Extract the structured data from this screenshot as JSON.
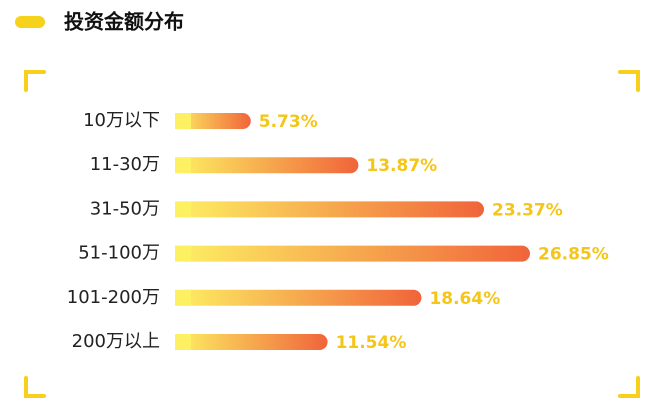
{
  "chart_data": {
    "type": "bar",
    "orientation": "horizontal",
    "title": "投资金额分布",
    "categories": [
      "10万以下",
      "11-30万",
      "31-50万",
      "51-100万",
      "101-200万",
      "200万以上"
    ],
    "values": [
      5.73,
      13.87,
      23.37,
      26.85,
      18.64,
      11.54
    ],
    "value_labels": [
      "5.73%",
      "13.87%",
      "23.37%",
      "26.85%",
      "18.64%",
      "11.54%"
    ],
    "colors": [
      "#fdf063",
      "#f0643a"
    ]
  }
}
